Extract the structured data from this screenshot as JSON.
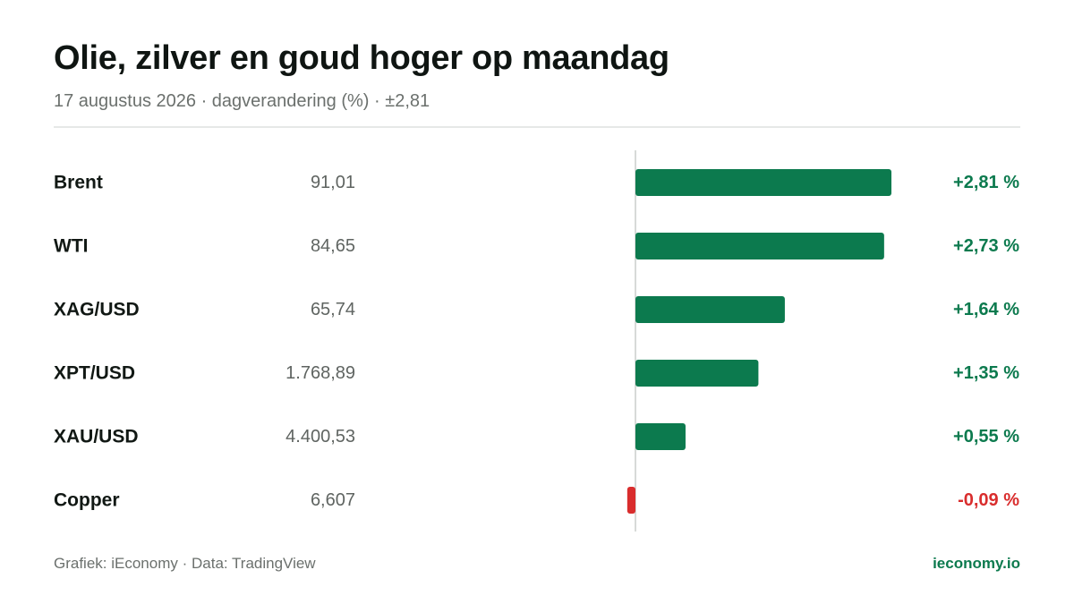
{
  "header": {
    "title": "Olie, zilver en goud hoger op maandag",
    "subtitle": "17 augustus 2026 · dagverandering (%) · ±2,81"
  },
  "footer": {
    "source": "Grafiek: iEconomy · Data: TradingView",
    "brand": "ieconomy.io"
  },
  "colors": {
    "positive": "#0c7a4e",
    "negative": "#d92d2d",
    "axis": "#d7dad8",
    "label": "#111814",
    "price": "#5f6461"
  },
  "chart_data": {
    "type": "bar",
    "orientation": "horizontal",
    "categories": [
      "Brent",
      "WTI",
      "XAG/USD",
      "XPT/USD",
      "XAU/USD",
      "Copper"
    ],
    "prices": [
      "91,01",
      "84,65",
      "65,74",
      "1.768,89",
      "4.400,53",
      "6,607"
    ],
    "values": [
      2.81,
      2.73,
      1.64,
      1.35,
      0.55,
      -0.09
    ],
    "value_labels": [
      "+2,81 %",
      "+2,73 %",
      "+1,64 %",
      "+1,35 %",
      "+0,55 %",
      "-0,09 %"
    ],
    "xlim": [
      -2.81,
      2.81
    ],
    "grid": false,
    "legend": "none"
  }
}
